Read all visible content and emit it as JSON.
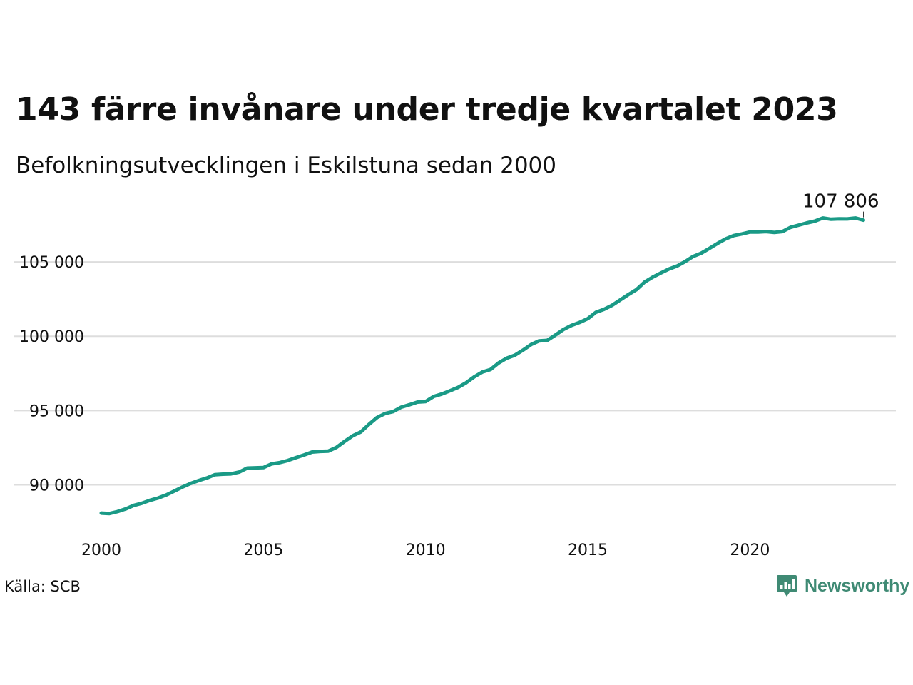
{
  "title": "143 färre invånare under tredje kvartalet 2023",
  "subtitle": "Befolkningsutvecklingen i Eskilstuna sedan 2000",
  "source": "Källa: SCB",
  "brand": {
    "name": "Newsworthy",
    "logo_icon": "bar-chart-speech-bubble-icon",
    "color": "#3f8a74"
  },
  "colors": {
    "line": "#1a9a86",
    "grid": "#dddddd",
    "text": "#111111"
  },
  "chart_data": {
    "type": "line",
    "xlabel": "",
    "ylabel": "",
    "grid": true,
    "xlim": [
      2000.0,
      2024.5
    ],
    "ylim": [
      87000,
      108700
    ],
    "x_ticks": [
      2000,
      2005,
      2010,
      2015,
      2020
    ],
    "x_tick_labels": [
      "2000",
      "2005",
      "2010",
      "2015",
      "2020"
    ],
    "y_ticks": [
      90000,
      95000,
      100000,
      105000
    ],
    "y_tick_labels": [
      "90 000",
      "95 000",
      "100 000",
      "105 000"
    ],
    "end_label": "107 806",
    "x": [
      2000.0,
      2000.25,
      2000.5,
      2000.75,
      2001.0,
      2001.25,
      2001.5,
      2001.75,
      2002.0,
      2002.25,
      2002.5,
      2002.75,
      2003.0,
      2003.25,
      2003.5,
      2003.75,
      2004.0,
      2004.25,
      2004.5,
      2004.75,
      2005.0,
      2005.25,
      2005.5,
      2005.75,
      2006.0,
      2006.25,
      2006.5,
      2006.75,
      2007.0,
      2007.25,
      2007.5,
      2007.75,
      2008.0,
      2008.25,
      2008.5,
      2008.75,
      2009.0,
      2009.25,
      2009.5,
      2009.75,
      2010.0,
      2010.25,
      2010.5,
      2010.75,
      2011.0,
      2011.25,
      2011.5,
      2011.75,
      2012.0,
      2012.25,
      2012.5,
      2012.75,
      2013.0,
      2013.25,
      2013.5,
      2013.75,
      2014.0,
      2014.25,
      2014.5,
      2014.75,
      2015.0,
      2015.25,
      2015.5,
      2015.75,
      2016.0,
      2016.25,
      2016.5,
      2016.75,
      2017.0,
      2017.25,
      2017.5,
      2017.75,
      2018.0,
      2018.25,
      2018.5,
      2018.75,
      2019.0,
      2019.25,
      2019.5,
      2019.75,
      2020.0,
      2020.25,
      2020.5,
      2020.75,
      2021.0,
      2021.25,
      2021.5,
      2021.75,
      2022.0,
      2022.25,
      2022.5,
      2022.75,
      2023.0,
      2023.25,
      2023.5
    ],
    "series": [
      {
        "values": [
          88100,
          88070,
          88200,
          88380,
          88620,
          88760,
          88960,
          89110,
          89320,
          89580,
          89850,
          90090,
          90290,
          90460,
          90680,
          90720,
          90740,
          90860,
          91130,
          91150,
          91160,
          91410,
          91500,
          91640,
          91830,
          92010,
          92210,
          92250,
          92270,
          92520,
          92920,
          93300,
          93560,
          94060,
          94530,
          94800,
          94930,
          95230,
          95390,
          95570,
          95610,
          95950,
          96110,
          96330,
          96560,
          96870,
          97270,
          97590,
          97760,
          98200,
          98520,
          98720,
          99060,
          99440,
          99690,
          99720,
          100080,
          100450,
          100730,
          100930,
          101180,
          101610,
          101810,
          102080,
          102440,
          102800,
          103130,
          103640,
          103970,
          104250,
          104520,
          104720,
          105020,
          105370,
          105590,
          105910,
          106240,
          106550,
          106770,
          106880,
          107010,
          107010,
          107040,
          106980,
          107040,
          107320,
          107470,
          107620,
          107740,
          107950,
          107870,
          107900,
          107890,
          107950,
          107806
        ]
      }
    ]
  }
}
